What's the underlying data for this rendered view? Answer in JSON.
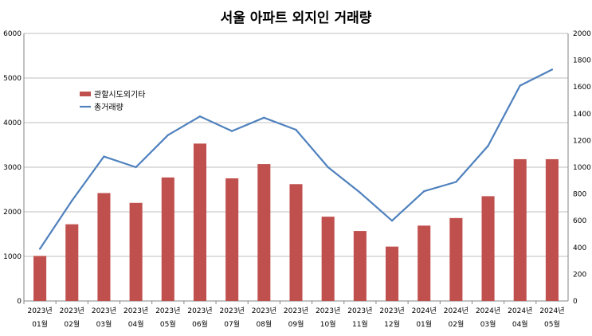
{
  "chart_data": {
    "type": "bar+line",
    "title": "서울 아파트 외지인 거래량",
    "categories": [
      [
        "2023년",
        "01월"
      ],
      [
        "2023년",
        "02월"
      ],
      [
        "2023년",
        "03월"
      ],
      [
        "2023년",
        "04월"
      ],
      [
        "2023년",
        "05월"
      ],
      [
        "2023년",
        "06월"
      ],
      [
        "2023년",
        "07월"
      ],
      [
        "2023년",
        "08월"
      ],
      [
        "2023년",
        "09월"
      ],
      [
        "2023년",
        "10월"
      ],
      [
        "2023년",
        "11월"
      ],
      [
        "2023년",
        "12월"
      ],
      [
        "2024년",
        "01월"
      ],
      [
        "2024년",
        "02월"
      ],
      [
        "2024년",
        "03월"
      ],
      [
        "2024년",
        "04월"
      ],
      [
        "2024년",
        "05월"
      ]
    ],
    "series": [
      {
        "name": "관할시도외기타",
        "type": "bar",
        "axis": "left",
        "color": "#c0504d",
        "values": [
          1010,
          1720,
          2420,
          2200,
          2770,
          3530,
          2750,
          3070,
          2620,
          1890,
          1570,
          1220,
          1690,
          1860,
          2350,
          3180,
          3180
        ]
      },
      {
        "name": "총거래량",
        "type": "line",
        "axis": "right",
        "color": "#4f81bd",
        "values": [
          390,
          750,
          1080,
          1000,
          1240,
          1380,
          1270,
          1370,
          1280,
          1000,
          810,
          600,
          820,
          890,
          1160,
          1610,
          1730
        ]
      }
    ],
    "ylim_left": [
      0,
      6000
    ],
    "yticks_left": [
      0,
      1000,
      2000,
      3000,
      4000,
      5000,
      6000
    ],
    "ylim_right": [
      0,
      2000
    ],
    "yticks_right": [
      0,
      200,
      400,
      600,
      800,
      1000,
      1200,
      1400,
      1600,
      1800,
      2000
    ],
    "grid": true,
    "legend_position": "top-left"
  }
}
